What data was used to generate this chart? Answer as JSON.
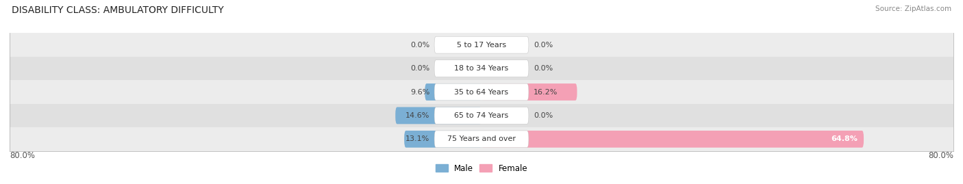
{
  "title": "DISABILITY CLASS: AMBULATORY DIFFICULTY",
  "source": "Source: ZipAtlas.com",
  "categories": [
    "5 to 17 Years",
    "18 to 34 Years",
    "35 to 64 Years",
    "65 to 74 Years",
    "75 Years and over"
  ],
  "male_values": [
    0.0,
    0.0,
    9.6,
    14.6,
    13.1
  ],
  "female_values": [
    0.0,
    0.0,
    16.2,
    0.0,
    64.8
  ],
  "male_color": "#7bafd4",
  "female_color": "#f4a0b5",
  "row_bg_colors": [
    "#ececec",
    "#e0e0e0"
  ],
  "axis_limit": 80.0,
  "legend_male": "Male",
  "legend_female": "Female",
  "title_fontsize": 10,
  "label_fontsize": 8,
  "axis_label_fontsize": 8.5,
  "figsize": [
    14.06,
    2.69
  ],
  "dpi": 100
}
